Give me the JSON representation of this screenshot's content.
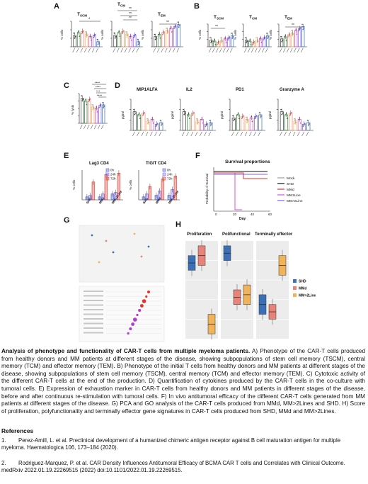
{
  "panels": {
    "A": {
      "letter": "A",
      "titles": [
        "T",
        "T",
        "T"
      ],
      "subs": [
        "SCM",
        "CM",
        "EM"
      ],
      "ylabel": "% cells"
    },
    "B": {
      "letter": "B",
      "titles": [
        "T",
        "T",
        "T"
      ],
      "subs": [
        "SCM",
        "CM",
        "EM"
      ],
      "ylabel": "% cells"
    },
    "C": {
      "letter": "C",
      "ylabel": "% lysis"
    },
    "D": {
      "letter": "D",
      "titles": [
        "MIP1ALFA",
        "IL2",
        "PD1",
        "Granzyme A"
      ],
      "ylabel": "pg/ml"
    },
    "E": {
      "letter": "E",
      "titles": [
        "Lag3 CD4",
        "TIGIT CD4"
      ],
      "ylabel": "% cells",
      "legend": [
        "0h",
        "24h",
        "72h"
      ],
      "xcats": [
        "SHD",
        "MMd",
        "MM>2Line"
      ]
    },
    "F": {
      "letter": "F",
      "title": "Survival proportions",
      "ylabel": "Probability of Survival",
      "xlabel": "Day",
      "legend": [
        "Mock",
        "SHD",
        "MMd",
        "MM1Line",
        "MM>2Line"
      ],
      "xticks": [
        "0",
        "20",
        "40",
        "60"
      ]
    },
    "G": {
      "letter": "G"
    },
    "H": {
      "letter": "H",
      "titles": [
        "Proliferation",
        "Polifunctional",
        "Terminally effector"
      ],
      "legend": [
        "SHD",
        "MMd",
        "MM>2Line"
      ]
    }
  },
  "colors": {
    "shd": "#3b6fb6",
    "mmd": "#e8837a",
    "mm2": "#f0b35a",
    "red": "#d7372b",
    "blue": "#3c56c4",
    "pink": "#d946c9",
    "purple": "#7b5cff",
    "green": "#3a9a45"
  },
  "caption": {
    "title": "Analysis of phenotype and functionality of CAR-T cells from multiple myeloma patients.",
    "body": " A) Phenotype of the CAR-T cells produced from healthy donors and MM patients at different stages of the disease, showing subpopulations of stem cell memory (TSCM), central memory (TCM) and effector memory (TEM). B) Phenotype of the initial T cells from healthy donors and MM patients at different stages of the disease, showing subpopulations of stem cell memory (TSCM), central memory (TCM) and effector memory (TEM). C) Cytotoxic activity of the different CAR-T cells at the end of the production. D) Quantification of cytokines produced by the CAR-T cells in the co-culture with tumoral cells. E) Expression of exhaustion marker in CAR-T cells from healthy donors and MM patients in different stages of the disease, before and after continuous re-stimulation with tumoral cells. F) In vivo antitumoral efficacy of the different CAR-T cells generated from MM patients at different stages of the disease. G) PCA and GO analysis of the CAR-T cells produced from MMd, MM>2Lines and SHD. H) Score of proliferation, polyfunctionality and terminally effector gene signatures in CAR-T cells produced from SHD, MMd and MM>2Lines."
  },
  "references": {
    "heading": "References",
    "items": [
      {
        "num": "1.",
        "text": "Perez-Amill, L. et al. Preclinical development of a humanized chimeric antigen receptor against B cell maturation antigen for multiple myeloma. Haematologica 106, 173–184 (2020)."
      },
      {
        "num": "2.",
        "text": "Rodriguez-Marquez, P. et al. CAR Density Influences Antitumoral Efficacy of BCMA CAR T cells and Correlates with Clinical Outcome. medRxiv 2022.01.19.22269515 (2022) doi:10.1101/2022.01.19.22269515."
      }
    ]
  }
}
